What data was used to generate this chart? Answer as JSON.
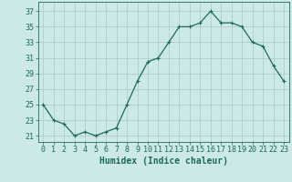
{
  "x": [
    0,
    1,
    2,
    3,
    4,
    5,
    6,
    7,
    8,
    9,
    10,
    11,
    12,
    13,
    14,
    15,
    16,
    17,
    18,
    19,
    20,
    21,
    22,
    23
  ],
  "y": [
    25,
    23,
    22.5,
    21,
    21.5,
    21,
    21.5,
    22,
    25,
    28,
    30.5,
    31,
    33,
    35,
    35,
    35.5,
    37,
    35.5,
    35.5,
    35,
    33,
    32.5,
    30,
    28
  ],
  "line_color": "#1a6b5a",
  "marker": "+",
  "marker_size": 3,
  "background_color": "#cce8e8",
  "grid_color": "#b0cccc",
  "xlabel": "Humidex (Indice chaleur)",
  "ylabel_ticks": [
    21,
    23,
    25,
    27,
    29,
    31,
    33,
    35,
    37
  ],
  "xlim": [
    -0.5,
    23.5
  ],
  "ylim": [
    20.2,
    38.2
  ],
  "xtick_labels": [
    "0",
    "1",
    "2",
    "3",
    "4",
    "5",
    "6",
    "7",
    "8",
    "9",
    "10",
    "11",
    "12",
    "13",
    "14",
    "15",
    "16",
    "17",
    "18",
    "19",
    "20",
    "21",
    "22",
    "23"
  ],
  "label_fontsize": 7,
  "tick_fontsize": 6,
  "line_width": 0.9
}
